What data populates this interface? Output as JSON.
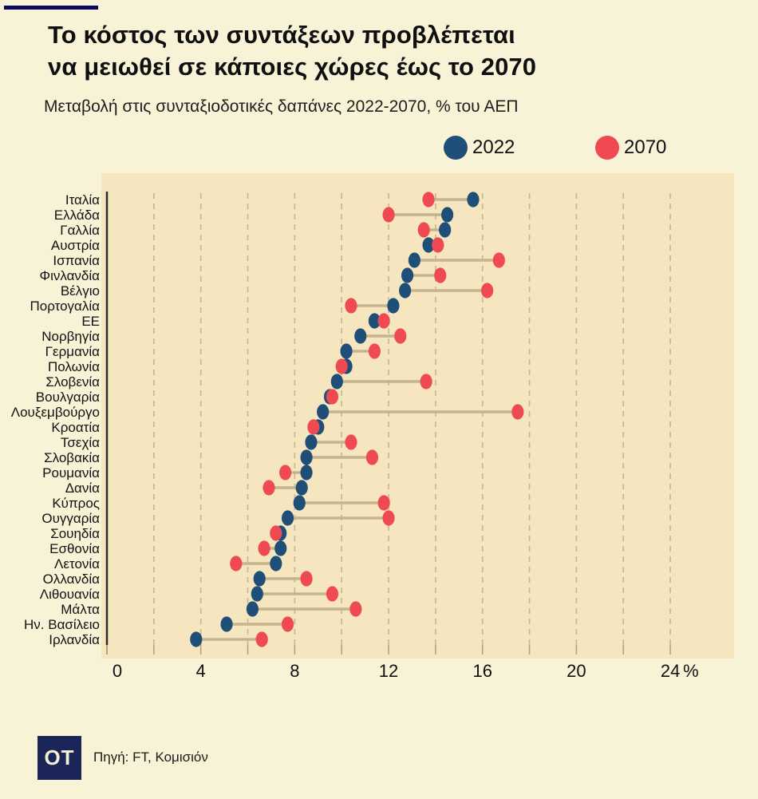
{
  "header": {
    "title_line1": "Το κόστος των συντάξεων προβλέπεται",
    "title_line2": "να μειωθεί σε κάποιες χώρες έως το 2070",
    "subtitle": "Μεταβολή στις συνταξιοδοτικές δαπάνες 2022-2070, % του ΑΕΠ"
  },
  "legend": [
    {
      "label": "2022",
      "color": "#1f4e79"
    },
    {
      "label": "2070",
      "color": "#ef4a51"
    }
  ],
  "footer": {
    "logo_text": "OT",
    "source": "Πηγή: FT, Κομισιόν"
  },
  "colors": {
    "page_background": "#f8f3d7",
    "plot_background": "#f6e6c0",
    "grid": "#c6b593",
    "connector": "#c3b18b",
    "axis": "#2b2b2b",
    "top_bar": "#0b0b5e",
    "logo_background": "#1b2558"
  },
  "chart_data": {
    "type": "scatter",
    "variant": "dumbbell",
    "title": "Το κόστος των συντάξεων προβλέπεται να μειωθεί σε κάποιες χώρες έως το 2070",
    "subtitle": "Μεταβολή στις συνταξιοδοτικές δαπάνες 2022-2070, % του ΑΕΠ",
    "xlabel": "",
    "ylabel": "",
    "x_unit": "%",
    "xlim": [
      0,
      26
    ],
    "x_ticks": [
      0,
      4,
      8,
      12,
      16,
      20,
      24
    ],
    "x_tick_labels": [
      "0",
      "4",
      "8",
      "12",
      "16",
      "20",
      "24"
    ],
    "grid": true,
    "grid_step": 2,
    "legend_position": "top-right",
    "categories": [
      "Ιταλία",
      "Ελλάδα",
      "Γαλλία",
      "Αυστρία",
      "Ισπανία",
      "Φινλανδία",
      "Βέλγιο",
      "Πορτογαλία",
      "ΕΕ",
      "Νορβηγία",
      "Γερμανία",
      "Πολωνία",
      "Σλοβενία",
      "Βουλγαρία",
      "Λουξεμβούργο",
      "Κροατία",
      "Τσεχία",
      "Σλοβακία",
      "Ρουμανία",
      "Δανία",
      "Κύπρος",
      "Ουγγαρία",
      "Σουηδία",
      "Εσθονία",
      "Λετονία",
      "Ολλανδία",
      "Λιθουανία",
      "Μάλτα",
      "Ην. Βασίλειο",
      "Ιρλανδία"
    ],
    "series": [
      {
        "name": "2022",
        "color": "#1f4e79",
        "values": [
          15.6,
          14.5,
          14.4,
          13.7,
          13.1,
          12.8,
          12.7,
          12.2,
          11.4,
          10.8,
          10.2,
          10.2,
          9.8,
          9.5,
          9.2,
          9.0,
          8.7,
          8.5,
          8.5,
          8.3,
          8.2,
          7.7,
          7.4,
          7.4,
          7.2,
          6.5,
          6.4,
          6.2,
          5.1,
          3.8
        ]
      },
      {
        "name": "2070",
        "color": "#ef4a51",
        "values": [
          13.7,
          12.0,
          13.5,
          14.1,
          16.7,
          14.2,
          16.2,
          10.4,
          11.8,
          12.5,
          11.4,
          10.0,
          13.6,
          9.6,
          17.5,
          8.8,
          10.4,
          11.3,
          7.6,
          6.9,
          11.8,
          12.0,
          7.2,
          6.7,
          5.5,
          8.5,
          9.6,
          10.6,
          7.7,
          6.6
        ]
      }
    ]
  }
}
